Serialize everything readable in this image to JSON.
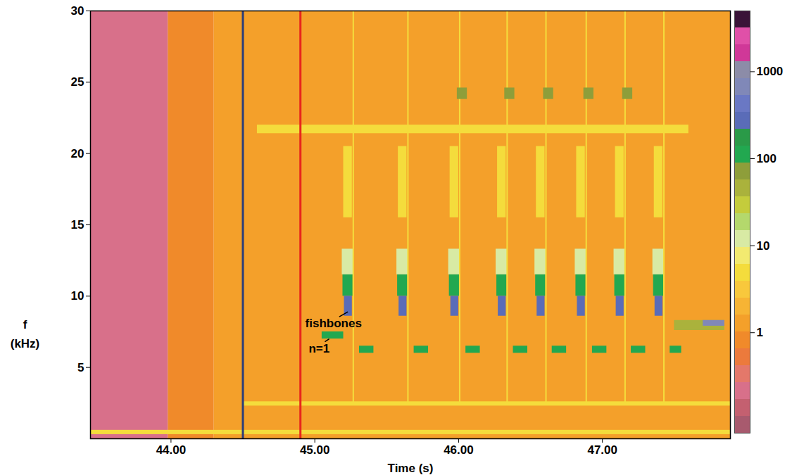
{
  "chart_data": {
    "type": "spectrogram",
    "xlabel": "Time (s)",
    "ylabel": "f\n(kHz)",
    "xlim": [
      43.44,
      47.89
    ],
    "xticks": [
      {
        "value": 44,
        "label": "44.00"
      },
      {
        "value": 45,
        "label": "45.00"
      },
      {
        "value": 46,
        "label": "46.00"
      },
      {
        "value": 47,
        "label": "47.00"
      }
    ],
    "ylim": [
      0,
      30
    ],
    "yticks": [
      5,
      10,
      15,
      20,
      25,
      30
    ],
    "colorbar": {
      "lim": [
        0.07,
        5000
      ],
      "ticks": [
        1,
        10,
        100,
        1000
      ],
      "log": true,
      "colors": [
        "#a85a6e",
        "#c46070",
        "#d8708a",
        "#e4786a",
        "#ec7a3c",
        "#f08a2a",
        "#f4a02a",
        "#f7b434",
        "#f8c83c",
        "#f4dc3c",
        "#f2ea70",
        "#d8eaa4",
        "#b4d86c",
        "#c4cc3c",
        "#aab23c",
        "#8e9e3a",
        "#22a850",
        "#2a9a48",
        "#5a6cb8",
        "#6a78c4",
        "#8088b8",
        "#8c8ca8",
        "#d03898",
        "#e050a8",
        "#3a1438"
      ]
    },
    "cells": [
      {
        "t0": 43.44,
        "t1": 43.98,
        "f0": 0,
        "f1": 30,
        "value": 0.2
      },
      {
        "t0": 43.98,
        "t1": 44.3,
        "f0": 0,
        "f1": 30,
        "value": 0.9
      },
      {
        "t0": 44.3,
        "t1": 47.89,
        "f0": 0,
        "f1": 30,
        "value": 1.5
      },
      {
        "t0": 44.6,
        "t1": 47.6,
        "f0": 21.4,
        "f1": 22.0,
        "value": 4
      },
      {
        "t0": 44.5,
        "t1": 47.89,
        "f0": 2.3,
        "f1": 2.6,
        "value": 4
      },
      {
        "t0": 43.44,
        "t1": 47.89,
        "f0": 0.3,
        "f1": 0.6,
        "value": 6
      },
      {
        "t0": 45.05,
        "t1": 45.2,
        "f0": 7.0,
        "f1": 7.5,
        "value": 100
      },
      {
        "t0": 45.19,
        "t1": 45.27,
        "f0": 11.5,
        "f1": 13.3,
        "value": 12
      },
      {
        "t0": 45.195,
        "t1": 45.265,
        "f0": 10.0,
        "f1": 11.5,
        "value": 100
      },
      {
        "t0": 45.205,
        "t1": 45.26,
        "f0": 8.6,
        "f1": 10.0,
        "value": 300
      },
      {
        "t0": 45.2,
        "t1": 45.26,
        "f0": 15.5,
        "f1": 20.5,
        "value": 5
      },
      {
        "t0": 45.265,
        "t1": 45.275,
        "f0": 2.5,
        "f1": 30,
        "value": 6
      },
      {
        "t0": 45.31,
        "t1": 45.41,
        "f0": 6.0,
        "f1": 6.5,
        "value": 100
      },
      {
        "t0": 45.57,
        "t1": 45.65,
        "f0": 11.5,
        "f1": 13.3,
        "value": 12
      },
      {
        "t0": 45.575,
        "t1": 45.645,
        "f0": 10.0,
        "f1": 11.5,
        "value": 100
      },
      {
        "t0": 45.585,
        "t1": 45.64,
        "f0": 8.6,
        "f1": 10.0,
        "value": 300
      },
      {
        "t0": 45.58,
        "t1": 45.64,
        "f0": 15.5,
        "f1": 20.5,
        "value": 5
      },
      {
        "t0": 45.645,
        "t1": 45.655,
        "f0": 2.5,
        "f1": 30,
        "value": 6
      },
      {
        "t0": 45.69,
        "t1": 45.79,
        "f0": 6.0,
        "f1": 6.5,
        "value": 100
      },
      {
        "t0": 45.93,
        "t1": 46.01,
        "f0": 11.5,
        "f1": 13.3,
        "value": 12
      },
      {
        "t0": 45.935,
        "t1": 46.005,
        "f0": 10.0,
        "f1": 11.5,
        "value": 100
      },
      {
        "t0": 45.945,
        "t1": 46.0,
        "f0": 8.6,
        "f1": 10.0,
        "value": 300
      },
      {
        "t0": 45.94,
        "t1": 46.0,
        "f0": 15.5,
        "f1": 20.5,
        "value": 5
      },
      {
        "t0": 46.005,
        "t1": 46.015,
        "f0": 2.5,
        "f1": 30,
        "value": 6
      },
      {
        "t0": 46.05,
        "t1": 46.15,
        "f0": 6.0,
        "f1": 6.5,
        "value": 100
      },
      {
        "t0": 45.99,
        "t1": 46.06,
        "f0": 23.8,
        "f1": 24.6,
        "value": 60
      },
      {
        "t0": 46.26,
        "t1": 46.34,
        "f0": 11.5,
        "f1": 13.3,
        "value": 12
      },
      {
        "t0": 46.265,
        "t1": 46.335,
        "f0": 10.0,
        "f1": 11.5,
        "value": 100
      },
      {
        "t0": 46.275,
        "t1": 46.33,
        "f0": 8.6,
        "f1": 10.0,
        "value": 300
      },
      {
        "t0": 46.27,
        "t1": 46.33,
        "f0": 15.5,
        "f1": 20.5,
        "value": 5
      },
      {
        "t0": 46.335,
        "t1": 46.345,
        "f0": 2.5,
        "f1": 30,
        "value": 6
      },
      {
        "t0": 46.38,
        "t1": 46.48,
        "f0": 6.0,
        "f1": 6.5,
        "value": 100
      },
      {
        "t0": 46.32,
        "t1": 46.39,
        "f0": 23.8,
        "f1": 24.6,
        "value": 60
      },
      {
        "t0": 46.53,
        "t1": 46.61,
        "f0": 11.5,
        "f1": 13.3,
        "value": 12
      },
      {
        "t0": 46.535,
        "t1": 46.605,
        "f0": 10.0,
        "f1": 11.5,
        "value": 100
      },
      {
        "t0": 46.545,
        "t1": 46.6,
        "f0": 8.6,
        "f1": 10.0,
        "value": 300
      },
      {
        "t0": 46.54,
        "t1": 46.6,
        "f0": 15.5,
        "f1": 20.5,
        "value": 5
      },
      {
        "t0": 46.605,
        "t1": 46.615,
        "f0": 2.5,
        "f1": 30,
        "value": 6
      },
      {
        "t0": 46.65,
        "t1": 46.75,
        "f0": 6.0,
        "f1": 6.5,
        "value": 100
      },
      {
        "t0": 46.59,
        "t1": 46.66,
        "f0": 23.8,
        "f1": 24.6,
        "value": 60
      },
      {
        "t0": 46.81,
        "t1": 46.89,
        "f0": 11.5,
        "f1": 13.3,
        "value": 12
      },
      {
        "t0": 46.815,
        "t1": 46.885,
        "f0": 10.0,
        "f1": 11.5,
        "value": 100
      },
      {
        "t0": 46.825,
        "t1": 46.88,
        "f0": 8.6,
        "f1": 10.0,
        "value": 300
      },
      {
        "t0": 46.82,
        "t1": 46.88,
        "f0": 15.5,
        "f1": 20.5,
        "value": 5
      },
      {
        "t0": 46.885,
        "t1": 46.895,
        "f0": 2.5,
        "f1": 30,
        "value": 6
      },
      {
        "t0": 46.93,
        "t1": 47.03,
        "f0": 6.0,
        "f1": 6.5,
        "value": 100
      },
      {
        "t0": 46.87,
        "t1": 46.94,
        "f0": 23.8,
        "f1": 24.6,
        "value": 60
      },
      {
        "t0": 47.08,
        "t1": 47.16,
        "f0": 11.5,
        "f1": 13.3,
        "value": 12
      },
      {
        "t0": 47.085,
        "t1": 47.155,
        "f0": 10.0,
        "f1": 11.5,
        "value": 100
      },
      {
        "t0": 47.095,
        "t1": 47.15,
        "f0": 8.6,
        "f1": 10.0,
        "value": 300
      },
      {
        "t0": 47.09,
        "t1": 47.15,
        "f0": 15.5,
        "f1": 20.5,
        "value": 5
      },
      {
        "t0": 47.155,
        "t1": 47.165,
        "f0": 2.5,
        "f1": 30,
        "value": 6
      },
      {
        "t0": 47.2,
        "t1": 47.3,
        "f0": 6.0,
        "f1": 6.5,
        "value": 100
      },
      {
        "t0": 47.14,
        "t1": 47.21,
        "f0": 23.8,
        "f1": 24.6,
        "value": 60
      },
      {
        "t0": 47.35,
        "t1": 47.43,
        "f0": 11.5,
        "f1": 13.3,
        "value": 12
      },
      {
        "t0": 47.355,
        "t1": 47.425,
        "f0": 10.0,
        "f1": 11.5,
        "value": 100
      },
      {
        "t0": 47.365,
        "t1": 47.42,
        "f0": 8.6,
        "f1": 10.0,
        "value": 300
      },
      {
        "t0": 47.36,
        "t1": 47.42,
        "f0": 15.5,
        "f1": 20.5,
        "value": 5
      },
      {
        "t0": 47.425,
        "t1": 47.435,
        "f0": 2.5,
        "f1": 30,
        "value": 6
      },
      {
        "t0": 47.47,
        "t1": 47.55,
        "f0": 6.0,
        "f1": 6.5,
        "value": 100
      },
      {
        "t0": 47.5,
        "t1": 47.85,
        "f0": 7.6,
        "f1": 8.3,
        "value": 40
      },
      {
        "t0": 47.7,
        "t1": 47.85,
        "f0": 7.9,
        "f1": 8.3,
        "value": 800
      }
    ],
    "markers": [
      {
        "x": 44.5,
        "color": "#2c3e7a"
      },
      {
        "x": 44.9,
        "color": "#e8261c"
      }
    ],
    "annotations": [
      {
        "text": "fishbones",
        "x": 45.13,
        "y": 8.1,
        "from": [
          45.17,
          8.55
        ],
        "to": [
          45.23,
          8.9
        ]
      },
      {
        "text": "n=1",
        "x": 45.03,
        "y": 6.3,
        "from": [
          45.07,
          6.8
        ],
        "to": [
          45.1,
          7.0
        ]
      }
    ]
  }
}
